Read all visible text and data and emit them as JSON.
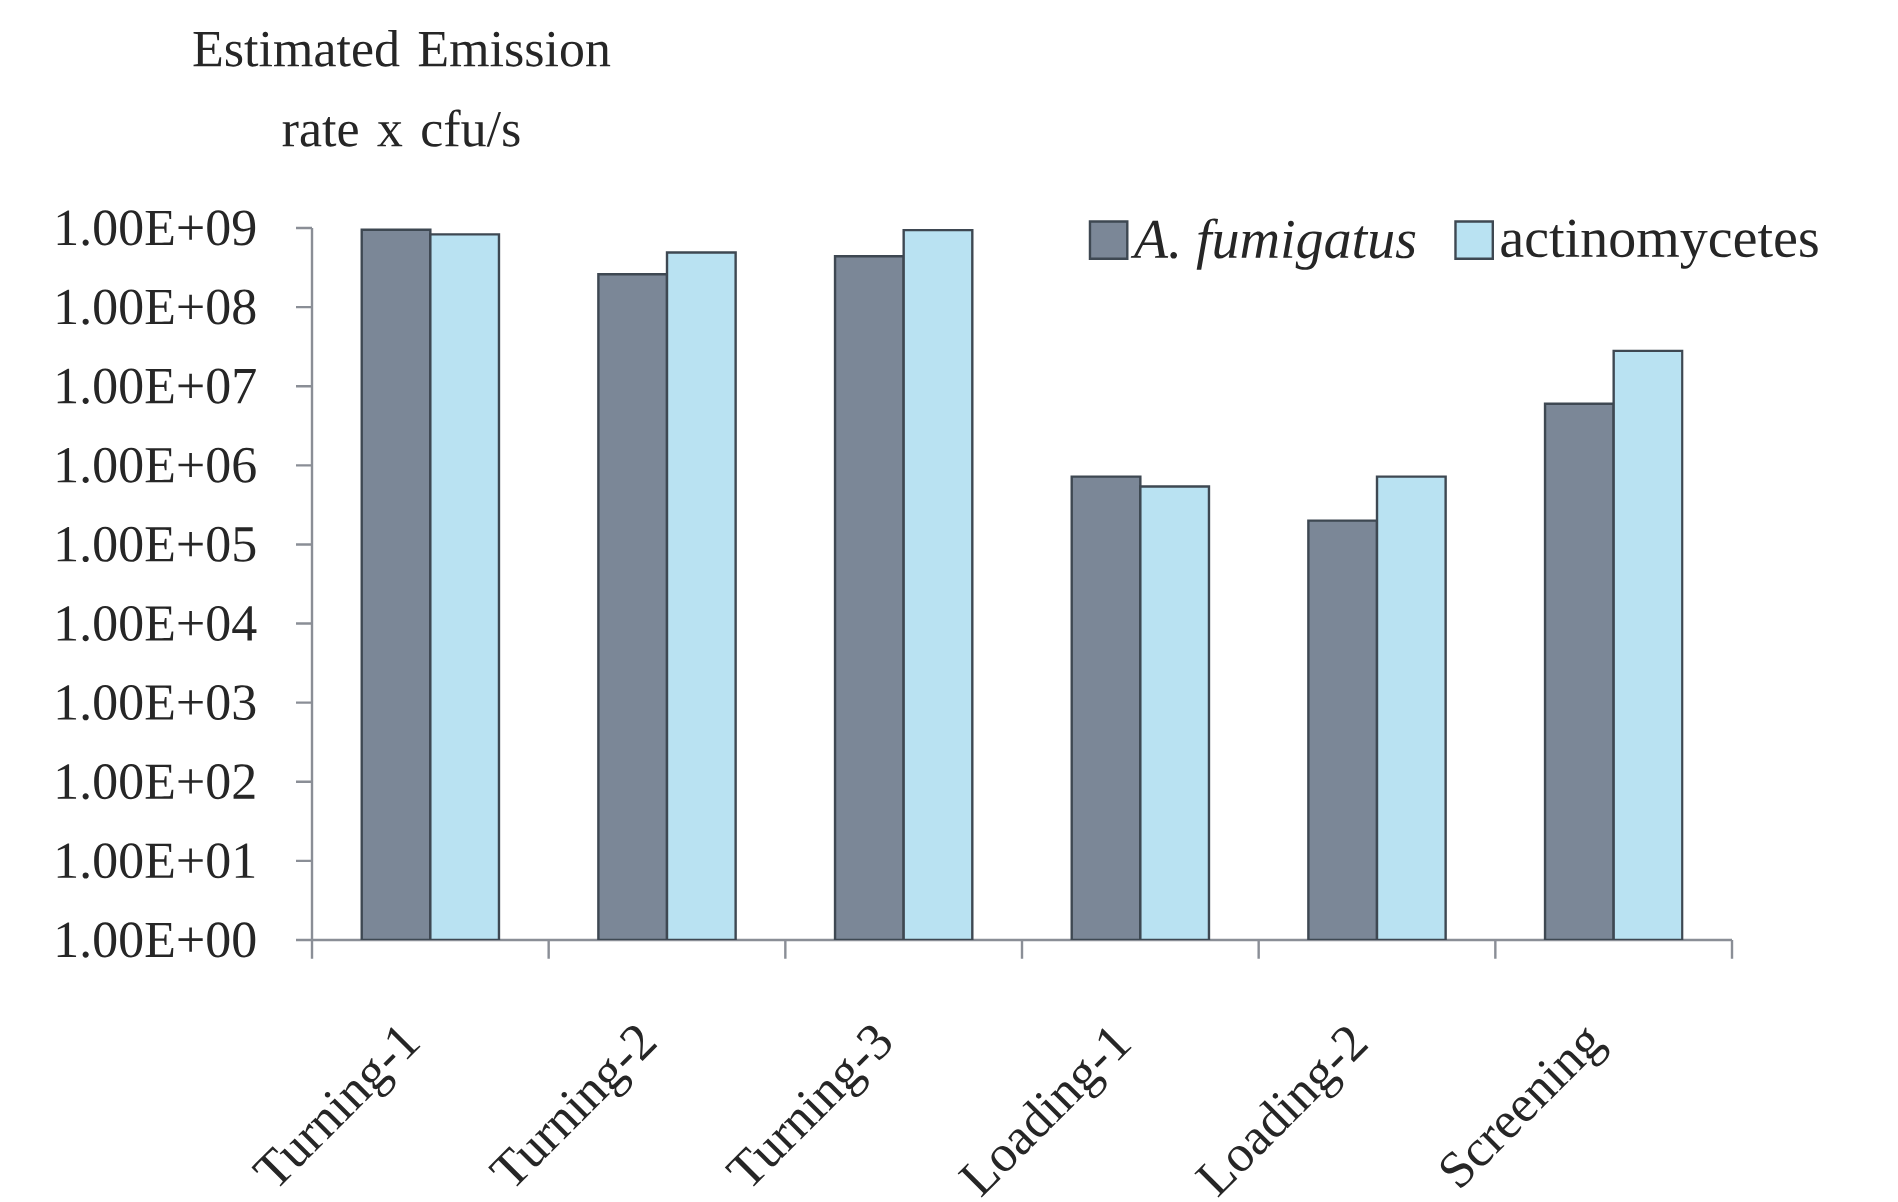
{
  "chart_data": {
    "type": "bar",
    "ylabel": "Estimated Emission rate x cfu/s",
    "categories": [
      "Turning-1",
      "Turning-2",
      "Turning-3",
      "Loading-1",
      "Loading-2",
      "Screening"
    ],
    "series": [
      {
        "name": "A. fumigatus",
        "color": "#7b8797",
        "values": [
          950000000,
          260000000,
          440000000,
          720000,
          200000,
          6000000
        ]
      },
      {
        "name": "actinomycetes",
        "color": "#b9e2f2",
        "values": [
          830000000,
          490000000,
          940000000,
          540000,
          720000,
          28000000
        ]
      }
    ],
    "log": true,
    "ylim": [
      1,
      1000000000
    ],
    "yticks": [
      {
        "value": 1,
        "label": "1.00E+00"
      },
      {
        "value": 10,
        "label": "1.00E+01"
      },
      {
        "value": 100,
        "label": "1.00E+02"
      },
      {
        "value": 1000,
        "label": "1.00E+03"
      },
      {
        "value": 10000,
        "label": "1.00E+04"
      },
      {
        "value": 100000,
        "label": "1.00E+05"
      },
      {
        "value": 1000000,
        "label": "1.00E+06"
      },
      {
        "value": 10000000,
        "label": "1.00E+07"
      },
      {
        "value": 100000000,
        "label": "1.00E+08"
      },
      {
        "value": 1000000000,
        "label": "1.00E+09"
      }
    ],
    "legend": "top right"
  }
}
